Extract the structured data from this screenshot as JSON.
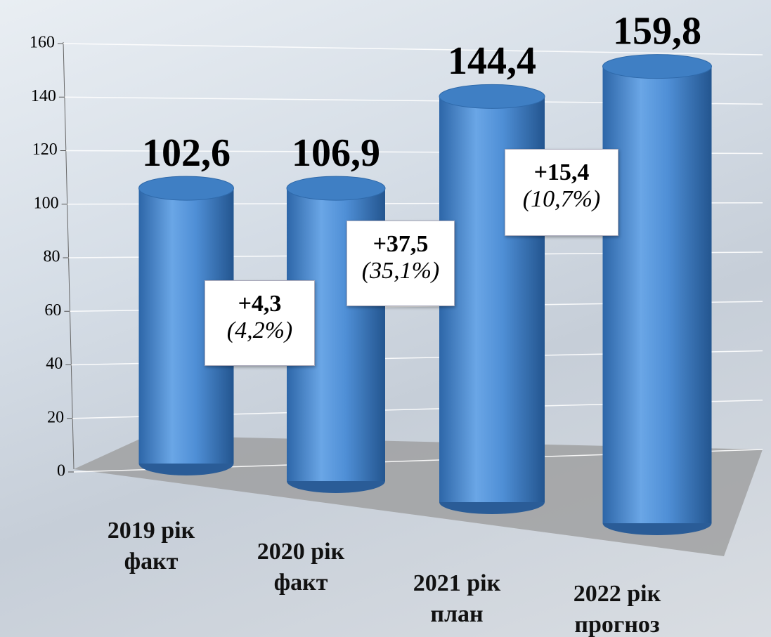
{
  "chart_data": {
    "type": "bar",
    "categories": [
      "2019 рік\nфакт",
      "2020 рік\nфакт",
      "2021 рік\nплан",
      "2022 рік\nпрогноз"
    ],
    "values": [
      102.6,
      106.9,
      144.4,
      159.8
    ],
    "value_labels": [
      "102,6",
      "106,9",
      "144,4",
      "159,8"
    ],
    "color": "#4f8fd6",
    "ylim": [
      0,
      160
    ],
    "yticks": [
      0,
      20,
      40,
      60,
      80,
      100,
      120,
      140,
      160
    ],
    "grid": true,
    "annotations": [
      [
        "+4,3",
        "(4,2%)"
      ],
      [
        "+37,5",
        "(35,1%)"
      ],
      [
        "+15,4",
        "(10,7%)"
      ]
    ]
  }
}
